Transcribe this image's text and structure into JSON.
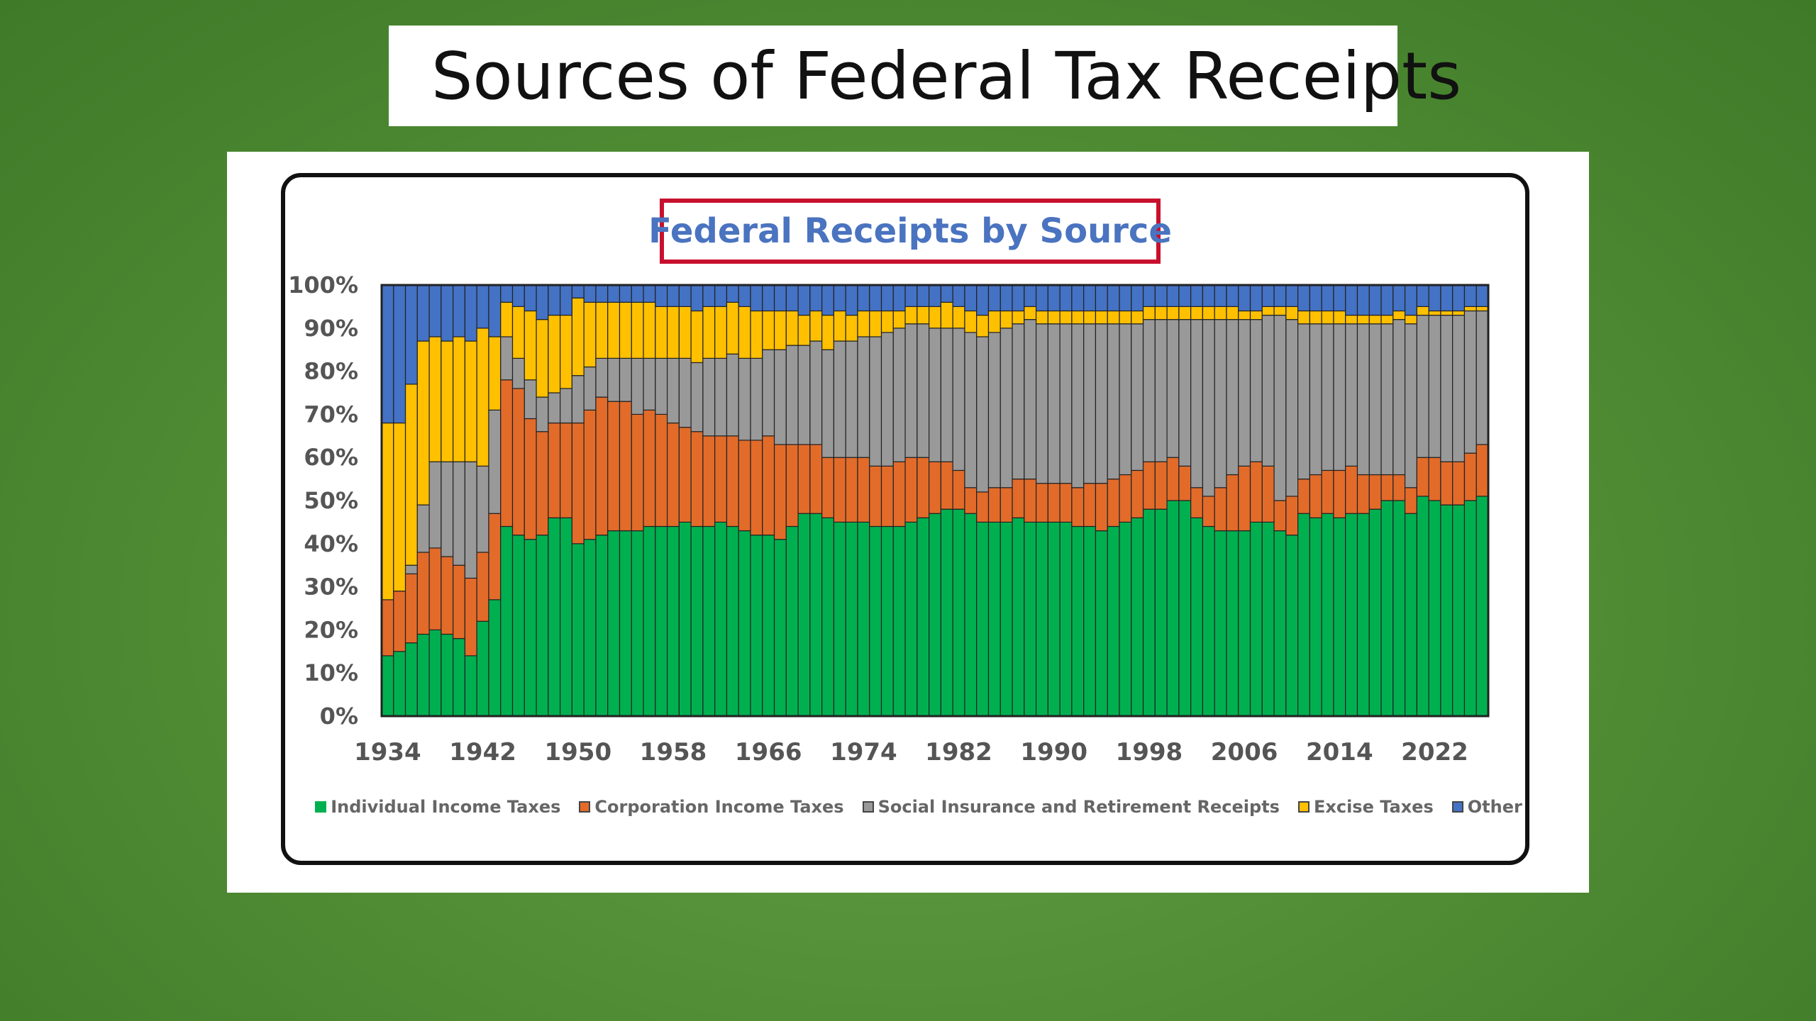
{
  "slide": {
    "title": "Sources of Federal Tax Receipts"
  },
  "chart_data": {
    "type": "bar",
    "stacked": true,
    "title": "Federal Receipts by Source",
    "xlabel": "",
    "ylabel": "",
    "ylim": [
      0,
      100
    ],
    "yticks": [
      "0%",
      "10%",
      "20%",
      "30%",
      "40%",
      "50%",
      "60%",
      "70%",
      "80%",
      "90%",
      "100%"
    ],
    "xticks": [
      "1934",
      "1942",
      "1950",
      "1958",
      "1966",
      "1974",
      "1982",
      "1990",
      "1998",
      "2006",
      "2014",
      "2022"
    ],
    "x_start": 1934,
    "x_end": 2026,
    "grid": false,
    "legend_position": "bottom",
    "colors": {
      "individual": "#00b050",
      "corporation": "#e26b2a",
      "social": "#999999",
      "excise": "#ffc000",
      "other": "#4472c4",
      "bar_outline": "#222222"
    },
    "anchors": {
      "individual": [
        [
          1934,
          14
        ],
        [
          1935,
          15
        ],
        [
          1936,
          17
        ],
        [
          1937,
          19
        ],
        [
          1938,
          20
        ],
        [
          1939,
          19
        ],
        [
          1940,
          18
        ],
        [
          1941,
          14
        ],
        [
          1942,
          22
        ],
        [
          1943,
          27
        ],
        [
          1944,
          44
        ],
        [
          1945,
          42
        ],
        [
          1946,
          41
        ],
        [
          1947,
          42
        ],
        [
          1948,
          46
        ],
        [
          1949,
          46
        ],
        [
          1950,
          40
        ],
        [
          1951,
          41
        ],
        [
          1952,
          42
        ],
        [
          1953,
          43
        ],
        [
          1954,
          43
        ],
        [
          1955,
          43
        ],
        [
          1956,
          44
        ],
        [
          1957,
          44
        ],
        [
          1958,
          44
        ],
        [
          1959,
          45
        ],
        [
          1960,
          44
        ],
        [
          1961,
          44
        ],
        [
          1962,
          45
        ],
        [
          1963,
          44
        ],
        [
          1964,
          43
        ],
        [
          1965,
          42
        ],
        [
          1966,
          42
        ],
        [
          1967,
          41
        ],
        [
          1968,
          44
        ],
        [
          1969,
          47
        ],
        [
          1970,
          47
        ],
        [
          1971,
          46
        ],
        [
          1972,
          45
        ],
        [
          1973,
          45
        ],
        [
          1974,
          45
        ],
        [
          1975,
          44
        ],
        [
          1976,
          44
        ],
        [
          1977,
          44
        ],
        [
          1978,
          45
        ],
        [
          1979,
          46
        ],
        [
          1980,
          47
        ],
        [
          1981,
          48
        ],
        [
          1982,
          48
        ],
        [
          1983,
          47
        ],
        [
          1984,
          45
        ],
        [
          1985,
          45
        ],
        [
          1986,
          45
        ],
        [
          1987,
          46
        ],
        [
          1988,
          45
        ],
        [
          1989,
          45
        ],
        [
          1990,
          45
        ],
        [
          1991,
          45
        ],
        [
          1992,
          44
        ],
        [
          1993,
          44
        ],
        [
          1994,
          43
        ],
        [
          1995,
          44
        ],
        [
          1996,
          45
        ],
        [
          1997,
          46
        ],
        [
          1998,
          48
        ],
        [
          1999,
          48
        ],
        [
          2000,
          50
        ],
        [
          2001,
          50
        ],
        [
          2002,
          46
        ],
        [
          2003,
          44
        ],
        [
          2004,
          43
        ],
        [
          2005,
          43
        ],
        [
          2006,
          43
        ],
        [
          2007,
          45
        ],
        [
          2008,
          45
        ],
        [
          2009,
          43
        ],
        [
          2010,
          42
        ],
        [
          2011,
          47
        ],
        [
          2012,
          46
        ],
        [
          2013,
          47
        ],
        [
          2014,
          46
        ],
        [
          2015,
          47
        ],
        [
          2016,
          47
        ],
        [
          2017,
          48
        ],
        [
          2018,
          50
        ],
        [
          2019,
          50
        ],
        [
          2020,
          47
        ],
        [
          2021,
          51
        ],
        [
          2022,
          50
        ],
        [
          2023,
          49
        ],
        [
          2024,
          49
        ],
        [
          2025,
          50
        ],
        [
          2026,
          51
        ]
      ],
      "corporation": [
        [
          1934,
          13
        ],
        [
          1935,
          14
        ],
        [
          1936,
          16
        ],
        [
          1937,
          19
        ],
        [
          1938,
          19
        ],
        [
          1939,
          18
        ],
        [
          1940,
          17
        ],
        [
          1941,
          18
        ],
        [
          1942,
          16
        ],
        [
          1943,
          20
        ],
        [
          1944,
          34
        ],
        [
          1945,
          34
        ],
        [
          1946,
          28
        ],
        [
          1947,
          24
        ],
        [
          1948,
          22
        ],
        [
          1949,
          22
        ],
        [
          1950,
          28
        ],
        [
          1951,
          30
        ],
        [
          1952,
          32
        ],
        [
          1953,
          30
        ],
        [
          1954,
          30
        ],
        [
          1955,
          27
        ],
        [
          1956,
          27
        ],
        [
          1957,
          26
        ],
        [
          1958,
          24
        ],
        [
          1959,
          22
        ],
        [
          1960,
          22
        ],
        [
          1961,
          21
        ],
        [
          1962,
          20
        ],
        [
          1963,
          21
        ],
        [
          1964,
          21
        ],
        [
          1965,
          22
        ],
        [
          1966,
          23
        ],
        [
          1967,
          22
        ],
        [
          1968,
          19
        ],
        [
          1969,
          16
        ],
        [
          1970,
          16
        ],
        [
          1971,
          14
        ],
        [
          1972,
          15
        ],
        [
          1973,
          15
        ],
        [
          1974,
          15
        ],
        [
          1975,
          14
        ],
        [
          1976,
          14
        ],
        [
          1977,
          15
        ],
        [
          1978,
          15
        ],
        [
          1979,
          14
        ],
        [
          1980,
          12
        ],
        [
          1981,
          11
        ],
        [
          1982,
          9
        ],
        [
          1983,
          6
        ],
        [
          1984,
          7
        ],
        [
          1985,
          8
        ],
        [
          1986,
          8
        ],
        [
          1987,
          9
        ],
        [
          1988,
          10
        ],
        [
          1989,
          9
        ],
        [
          1990,
          9
        ],
        [
          1991,
          9
        ],
        [
          1992,
          9
        ],
        [
          1993,
          10
        ],
        [
          1994,
          11
        ],
        [
          1995,
          11
        ],
        [
          1996,
          11
        ],
        [
          1997,
          11
        ],
        [
          1998,
          11
        ],
        [
          1999,
          11
        ],
        [
          2000,
          10
        ],
        [
          2001,
          8
        ],
        [
          2002,
          7
        ],
        [
          2003,
          7
        ],
        [
          2004,
          10
        ],
        [
          2005,
          13
        ],
        [
          2006,
          15
        ],
        [
          2007,
          14
        ],
        [
          2008,
          13
        ],
        [
          2009,
          7
        ],
        [
          2010,
          9
        ],
        [
          2011,
          8
        ],
        [
          2012,
          10
        ],
        [
          2013,
          10
        ],
        [
          2014,
          11
        ],
        [
          2015,
          11
        ],
        [
          2016,
          9
        ],
        [
          2017,
          8
        ],
        [
          2018,
          6
        ],
        [
          2019,
          6
        ],
        [
          2020,
          6
        ],
        [
          2021,
          9
        ],
        [
          2022,
          10
        ],
        [
          2023,
          10
        ],
        [
          2024,
          10
        ],
        [
          2025,
          11
        ],
        [
          2026,
          12
        ]
      ],
      "social": [
        [
          1934,
          0
        ],
        [
          1935,
          0
        ],
        [
          1936,
          2
        ],
        [
          1937,
          11
        ],
        [
          1938,
          20
        ],
        [
          1939,
          22
        ],
        [
          1940,
          24
        ],
        [
          1941,
          27
        ],
        [
          1942,
          20
        ],
        [
          1943,
          24
        ],
        [
          1944,
          10
        ],
        [
          1945,
          7
        ],
        [
          1946,
          9
        ],
        [
          1947,
          8
        ],
        [
          1948,
          7
        ],
        [
          1949,
          8
        ],
        [
          1950,
          11
        ],
        [
          1951,
          10
        ],
        [
          1952,
          9
        ],
        [
          1953,
          10
        ],
        [
          1954,
          10
        ],
        [
          1955,
          13
        ],
        [
          1956,
          12
        ],
        [
          1957,
          13
        ],
        [
          1958,
          15
        ],
        [
          1959,
          16
        ],
        [
          1960,
          16
        ],
        [
          1961,
          18
        ],
        [
          1962,
          18
        ],
        [
          1963,
          19
        ],
        [
          1964,
          19
        ],
        [
          1965,
          19
        ],
        [
          1966,
          20
        ],
        [
          1967,
          22
        ],
        [
          1968,
          23
        ],
        [
          1969,
          23
        ],
        [
          1970,
          24
        ],
        [
          1971,
          25
        ],
        [
          1972,
          27
        ],
        [
          1973,
          27
        ],
        [
          1974,
          28
        ],
        [
          1975,
          30
        ],
        [
          1976,
          31
        ],
        [
          1977,
          31
        ],
        [
          1978,
          31
        ],
        [
          1979,
          31
        ],
        [
          1980,
          31
        ],
        [
          1981,
          31
        ],
        [
          1982,
          33
        ],
        [
          1983,
          36
        ],
        [
          1984,
          36
        ],
        [
          1985,
          36
        ],
        [
          1986,
          37
        ],
        [
          1987,
          36
        ],
        [
          1988,
          37
        ],
        [
          1989,
          37
        ],
        [
          1990,
          37
        ],
        [
          1991,
          37
        ],
        [
          1992,
          38
        ],
        [
          1993,
          37
        ],
        [
          1994,
          37
        ],
        [
          1995,
          36
        ],
        [
          1996,
          35
        ],
        [
          1997,
          34
        ],
        [
          1998,
          33
        ],
        [
          1999,
          33
        ],
        [
          2000,
          32
        ],
        [
          2001,
          34
        ],
        [
          2002,
          39
        ],
        [
          2003,
          41
        ],
        [
          2004,
          39
        ],
        [
          2005,
          36
        ],
        [
          2006,
          34
        ],
        [
          2007,
          33
        ],
        [
          2008,
          35
        ],
        [
          2009,
          43
        ],
        [
          2010,
          41
        ],
        [
          2011,
          36
        ],
        [
          2012,
          35
        ],
        [
          2013,
          34
        ],
        [
          2014,
          34
        ],
        [
          2015,
          33
        ],
        [
          2016,
          35
        ],
        [
          2017,
          35
        ],
        [
          2018,
          35
        ],
        [
          2019,
          36
        ],
        [
          2020,
          38
        ],
        [
          2021,
          33
        ],
        [
          2022,
          33
        ],
        [
          2023,
          34
        ],
        [
          2024,
          34
        ],
        [
          2025,
          33
        ],
        [
          2026,
          31
        ]
      ],
      "excise": [
        [
          1934,
          41
        ],
        [
          1935,
          39
        ],
        [
          1936,
          42
        ],
        [
          1937,
          38
        ],
        [
          1938,
          29
        ],
        [
          1939,
          28
        ],
        [
          1940,
          29
        ],
        [
          1941,
          28
        ],
        [
          1942,
          32
        ],
        [
          1943,
          17
        ],
        [
          1944,
          8
        ],
        [
          1945,
          12
        ],
        [
          1946,
          16
        ],
        [
          1947,
          18
        ],
        [
          1948,
          18
        ],
        [
          1949,
          17
        ],
        [
          1950,
          18
        ],
        [
          1951,
          15
        ],
        [
          1952,
          13
        ],
        [
          1953,
          13
        ],
        [
          1954,
          13
        ],
        [
          1955,
          13
        ],
        [
          1956,
          13
        ],
        [
          1957,
          12
        ],
        [
          1958,
          12
        ],
        [
          1959,
          12
        ],
        [
          1960,
          12
        ],
        [
          1961,
          12
        ],
        [
          1962,
          12
        ],
        [
          1963,
          12
        ],
        [
          1964,
          12
        ],
        [
          1965,
          11
        ],
        [
          1966,
          9
        ],
        [
          1967,
          9
        ],
        [
          1968,
          8
        ],
        [
          1969,
          7
        ],
        [
          1970,
          7
        ],
        [
          1971,
          8
        ],
        [
          1972,
          7
        ],
        [
          1973,
          6
        ],
        [
          1974,
          6
        ],
        [
          1975,
          6
        ],
        [
          1976,
          5
        ],
        [
          1977,
          4
        ],
        [
          1978,
          4
        ],
        [
          1979,
          4
        ],
        [
          1980,
          5
        ],
        [
          1981,
          6
        ],
        [
          1982,
          5
        ],
        [
          1983,
          5
        ],
        [
          1984,
          5
        ],
        [
          1985,
          5
        ],
        [
          1986,
          4
        ],
        [
          1987,
          3
        ],
        [
          1988,
          3
        ],
        [
          1989,
          3
        ],
        [
          1990,
          3
        ],
        [
          1991,
          3
        ],
        [
          1992,
          3
        ],
        [
          1993,
          3
        ],
        [
          1994,
          3
        ],
        [
          1995,
          3
        ],
        [
          1996,
          3
        ],
        [
          1997,
          3
        ],
        [
          1998,
          3
        ],
        [
          1999,
          3
        ],
        [
          2000,
          3
        ],
        [
          2001,
          3
        ],
        [
          2002,
          3
        ],
        [
          2003,
          3
        ],
        [
          2004,
          3
        ],
        [
          2005,
          3
        ],
        [
          2006,
          2
        ],
        [
          2007,
          2
        ],
        [
          2008,
          2
        ],
        [
          2009,
          2
        ],
        [
          2010,
          3
        ],
        [
          2011,
          3
        ],
        [
          2012,
          3
        ],
        [
          2013,
          3
        ],
        [
          2014,
          3
        ],
        [
          2015,
          2
        ],
        [
          2016,
          2
        ],
        [
          2017,
          2
        ],
        [
          2018,
          2
        ],
        [
          2019,
          2
        ],
        [
          2020,
          2
        ],
        [
          2021,
          2
        ],
        [
          2022,
          1
        ],
        [
          2023,
          1
        ],
        [
          2024,
          1
        ],
        [
          2025,
          1
        ],
        [
          2026,
          1
        ]
      ]
    }
  }
}
